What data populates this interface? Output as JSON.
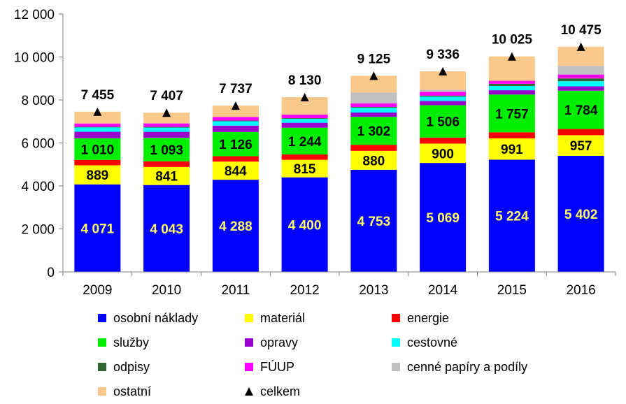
{
  "chart_data": {
    "type": "bar",
    "stacked": true,
    "title": "",
    "xlabel": "",
    "ylabel": "",
    "ylim": [
      0,
      12000
    ],
    "yticks": [
      0,
      2000,
      4000,
      6000,
      8000,
      10000,
      12000
    ],
    "ytick_labels": [
      "0",
      "2 000",
      "4 000",
      "6 000",
      "8 000",
      "10 000",
      "12 000"
    ],
    "categories": [
      "2009",
      "2010",
      "2011",
      "2012",
      "2013",
      "2014",
      "2015",
      "2016"
    ],
    "series": [
      {
        "key": "osobni",
        "name": "osobní náklady",
        "color": "#0000FF",
        "values": [
          4071,
          4043,
          4288,
          4400,
          4753,
          5069,
          5224,
          5402
        ],
        "labels": [
          "4 071",
          "4 043",
          "4 288",
          "4 400",
          "4 753",
          "5 069",
          "5 224",
          "5 402"
        ],
        "label_color": "#FFFF66"
      },
      {
        "key": "material",
        "name": "materiál",
        "color": "#FFFF00",
        "values": [
          889,
          841,
          844,
          815,
          880,
          900,
          991,
          957
        ],
        "labels": [
          "889",
          "841",
          "844",
          "815",
          "880",
          "900",
          "991",
          "957"
        ],
        "label_color": "#000000"
      },
      {
        "key": "energie",
        "name": "energie",
        "color": "#FF0000",
        "values": [
          250,
          260,
          250,
          250,
          280,
          280,
          280,
          290
        ],
        "labels": null
      },
      {
        "key": "sluzby",
        "name": "služby",
        "color": "#00EE00",
        "values": [
          1010,
          1093,
          1126,
          1244,
          1302,
          1506,
          1757,
          1784
        ],
        "labels": [
          "1 010",
          "1 093",
          "1 126",
          "1 244",
          "1 302",
          "1 506",
          "1 757",
          "1 784"
        ],
        "label_color": "#000000"
      },
      {
        "key": "opravy",
        "name": "opravy",
        "color": "#9900CC",
        "values": [
          300,
          280,
          300,
          230,
          200,
          200,
          200,
          200
        ],
        "labels": null
      },
      {
        "key": "cestovne",
        "name": "cestovné",
        "color": "#00FFFF",
        "values": [
          200,
          200,
          200,
          180,
          230,
          200,
          200,
          240
        ],
        "labels": null
      },
      {
        "key": "odpisy",
        "name": "odpisy",
        "color": "#336633",
        "values": [
          30,
          30,
          30,
          30,
          30,
          50,
          100,
          130
        ],
        "labels": null
      },
      {
        "key": "fuup",
        "name": "FÚUP",
        "color": "#FF00FF",
        "values": [
          155,
          160,
          170,
          170,
          170,
          170,
          140,
          180
        ],
        "labels": null
      },
      {
        "key": "cenne",
        "name": "cenné papíry a podíly",
        "color": "#C0C0C0",
        "values": [
          0,
          0,
          0,
          0,
          500,
          100,
          0,
          400
        ],
        "labels": null
      },
      {
        "key": "ostatni",
        "name": "ostatní",
        "color": "#F9C98C",
        "values": [
          550,
          500,
          529,
          811,
          780,
          861,
          1133,
          892
        ],
        "labels": null
      }
    ],
    "totals": {
      "name": "celkem",
      "marker": "triangle",
      "values": [
        7455,
        7407,
        7737,
        8130,
        9125,
        9336,
        10025,
        10475
      ],
      "labels": [
        "7 455",
        "7 407",
        "7 737",
        "8 130",
        "9 125",
        "9 336",
        "10 025",
        "10 475"
      ]
    },
    "legend": {
      "placement": "bottom",
      "columns": 3,
      "entries": [
        {
          "label": "osobní náklady",
          "symbol": "square",
          "color": "#0000FF"
        },
        {
          "label": "materiál",
          "symbol": "square",
          "color": "#FFFF00"
        },
        {
          "label": "energie",
          "symbol": "square",
          "color": "#FF0000"
        },
        {
          "label": "služby",
          "symbol": "square",
          "color": "#00EE00"
        },
        {
          "label": "opravy",
          "symbol": "square",
          "color": "#9900CC"
        },
        {
          "label": "cestovné",
          "symbol": "square",
          "color": "#00FFFF"
        },
        {
          "label": "odpisy",
          "symbol": "square",
          "color": "#336633"
        },
        {
          "label": "FÚUP",
          "symbol": "square",
          "color": "#FF00FF"
        },
        {
          "label": "cenné papíry a podíly",
          "symbol": "square",
          "color": "#C0C0C0"
        },
        {
          "label": "ostatní",
          "symbol": "square",
          "color": "#F9C98C"
        },
        {
          "label": "celkem",
          "symbol": "triangle",
          "color": "#000000"
        }
      ]
    }
  }
}
